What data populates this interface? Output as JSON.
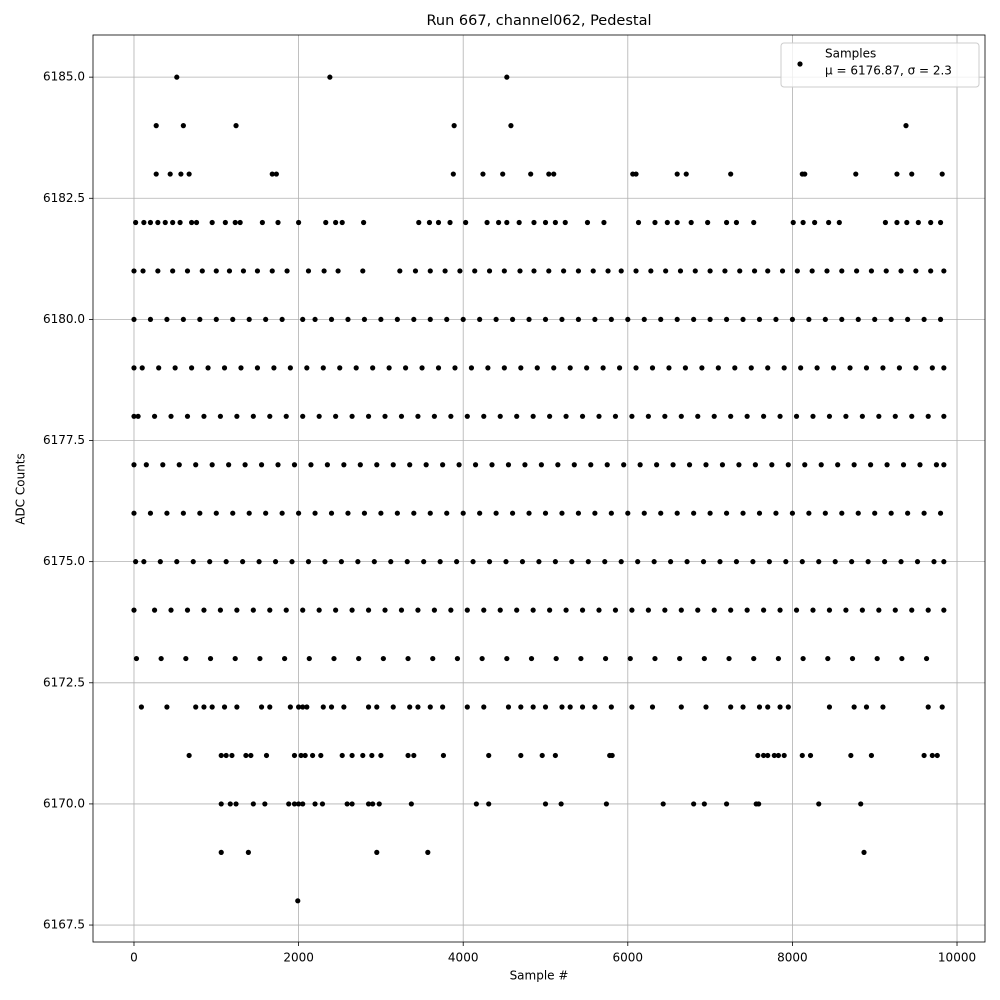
{
  "chart_data": {
    "type": "scatter",
    "title": "Run 667, channel062, Pedestal",
    "x_label": "Sample #",
    "y_label": "ADC Counts",
    "legend_note": "μ = 6176.87, σ = 2.3",
    "legend_position": "upper right",
    "grid": true,
    "xlim": [
      -498,
      10340
    ],
    "ylim": [
      6167.15,
      6185.87
    ],
    "xticks": [
      0,
      2000,
      4000,
      6000,
      8000,
      10000
    ],
    "yticks": [
      {
        "value": 6167.5,
        "label": "6167.5"
      },
      {
        "value": 6170,
        "label": "6170.0"
      },
      {
        "value": 6172.5,
        "label": "6172.5"
      },
      {
        "value": 6175,
        "label": "6175.0"
      },
      {
        "value": 6177.5,
        "label": "6177.5"
      },
      {
        "value": 6180,
        "label": "6180.0"
      },
      {
        "value": 6182.5,
        "label": "6182.5"
      },
      {
        "value": 6185,
        "label": "6185.0"
      }
    ],
    "x": [
      520,
      2380,
      4530,
      270,
      600,
      1240,
      3890,
      4580,
      9380,
      270,
      440,
      570,
      670,
      1680,
      1730,
      3880,
      4240,
      4480,
      4820,
      5040,
      5100,
      6060,
      6100,
      6600,
      6710,
      7250,
      8120,
      8150,
      8770,
      9270,
      9450,
      9820,
      20,
      120,
      200,
      290,
      380,
      470,
      560,
      700,
      760,
      950,
      1110,
      1230,
      1290,
      1560,
      1750,
      2000,
      2330,
      2450,
      2530,
      2790,
      3460,
      3590,
      3700,
      3840,
      4030,
      4290,
      4430,
      4530,
      4680,
      4860,
      5000,
      5120,
      5240,
      5510,
      5710,
      6130,
      6330,
      6480,
      6600,
      6770,
      6970,
      7200,
      7320,
      7530,
      8010,
      8130,
      8270,
      8440,
      8570,
      9130,
      9270,
      9390,
      9530,
      9680,
      9800,
      0,
      110,
      290,
      470,
      650,
      830,
      1000,
      1160,
      1330,
      1500,
      1680,
      1860,
      2120,
      2310,
      2480,
      2780,
      3230,
      3420,
      3600,
      3780,
      3960,
      4140,
      4320,
      4500,
      4690,
      4860,
      5040,
      5220,
      5400,
      5580,
      5760,
      5920,
      6100,
      6280,
      6460,
      6640,
      6820,
      7000,
      7180,
      7360,
      7540,
      7700,
      7880,
      8060,
      8240,
      8420,
      8600,
      8780,
      8960,
      9140,
      9320,
      9500,
      9680,
      9840,
      0,
      200,
      400,
      600,
      800,
      1000,
      1200,
      1400,
      1600,
      1800,
      2050,
      2200,
      2400,
      2600,
      2800,
      3000,
      3200,
      3400,
      3600,
      3800,
      4000,
      4200,
      4400,
      4600,
      4800,
      5000,
      5200,
      5400,
      5600,
      5800,
      6000,
      6200,
      6400,
      6600,
      6800,
      7000,
      7200,
      7400,
      7600,
      7800,
      8000,
      8200,
      8400,
      8600,
      8800,
      9000,
      9200,
      9400,
      9600,
      9800,
      0,
      100,
      300,
      500,
      700,
      900,
      1100,
      1300,
      1500,
      1700,
      1900,
      2100,
      2300,
      2500,
      2700,
      2900,
      3100,
      3300,
      3500,
      3700,
      3900,
      4100,
      4300,
      4500,
      4700,
      4900,
      5100,
      5300,
      5500,
      5700,
      5900,
      6100,
      6300,
      6500,
      6700,
      6900,
      7100,
      7300,
      7500,
      7700,
      7900,
      8100,
      8300,
      8500,
      8700,
      8900,
      9100,
      9300,
      9500,
      9700,
      9840,
      0,
      50,
      250,
      450,
      650,
      850,
      1050,
      1250,
      1450,
      1650,
      1850,
      2050,
      2250,
      2450,
      2650,
      2850,
      3050,
      3250,
      3450,
      3650,
      3850,
      4050,
      4250,
      4450,
      4650,
      4850,
      5050,
      5250,
      5450,
      5650,
      5850,
      6050,
      6250,
      6450,
      6650,
      6850,
      7050,
      7250,
      7450,
      7650,
      7850,
      8050,
      8250,
      8450,
      8650,
      8850,
      9050,
      9250,
      9450,
      9650,
      9840,
      0,
      150,
      350,
      550,
      750,
      950,
      1150,
      1350,
      1550,
      1750,
      1950,
      2150,
      2350,
      2550,
      2750,
      2950,
      3150,
      3350,
      3550,
      3750,
      3950,
      4150,
      4350,
      4550,
      4750,
      4950,
      5150,
      5350,
      5550,
      5750,
      5950,
      6150,
      6350,
      6550,
      6750,
      6950,
      7150,
      7350,
      7550,
      7750,
      7950,
      8150,
      8350,
      8550,
      8750,
      8950,
      9150,
      9350,
      9550,
      9750,
      9840,
      0,
      200,
      400,
      600,
      800,
      1000,
      1200,
      1400,
      1600,
      1800,
      2000,
      2200,
      2400,
      2600,
      2800,
      3000,
      3200,
      3400,
      3600,
      3800,
      4000,
      4200,
      4400,
      4600,
      4800,
      5000,
      5200,
      5400,
      5600,
      5800,
      6000,
      6200,
      6400,
      6600,
      6800,
      7000,
      7200,
      7400,
      7600,
      7800,
      8000,
      8200,
      8400,
      8600,
      8800,
      9000,
      9200,
      9400,
      9600,
      9800,
      20,
      120,
      320,
      520,
      720,
      920,
      1120,
      1320,
      1520,
      1720,
      1920,
      2120,
      2320,
      2520,
      2720,
      2920,
      3120,
      3320,
      3520,
      3720,
      3920,
      4120,
      4320,
      4520,
      4720,
      4920,
      5120,
      5320,
      5520,
      5720,
      5920,
      6120,
      6320,
      6520,
      6720,
      6920,
      7120,
      7320,
      7520,
      7720,
      7920,
      8120,
      8320,
      8520,
      8720,
      8920,
      9120,
      9320,
      9520,
      9720,
      9840,
      0,
      250,
      450,
      650,
      850,
      1050,
      1250,
      1450,
      1650,
      1850,
      2050,
      2250,
      2450,
      2650,
      2850,
      3050,
      3250,
      3450,
      3650,
      3850,
      4050,
      4250,
      4450,
      4650,
      4850,
      5050,
      5250,
      5450,
      5650,
      5850,
      6050,
      6250,
      6450,
      6650,
      6850,
      7050,
      7250,
      7450,
      7650,
      7850,
      8050,
      8250,
      8450,
      8650,
      8850,
      9050,
      9250,
      9450,
      9650,
      9840,
      30,
      330,
      630,
      930,
      1230,
      1530,
      1830,
      2130,
      2430,
      2730,
      3030,
      3330,
      3630,
      3930,
      4230,
      4530,
      4830,
      5130,
      5430,
      5730,
      6030,
      6330,
      6630,
      6930,
      7230,
      7530,
      7830,
      8130,
      8430,
      8730,
      9030,
      9330,
      9630,
      90,
      400,
      750,
      850,
      950,
      1100,
      1250,
      1550,
      1650,
      1900,
      2000,
      2050,
      2100,
      2300,
      2400,
      2550,
      2850,
      2950,
      3150,
      3350,
      3450,
      3600,
      3750,
      4050,
      4250,
      4550,
      4700,
      4850,
      5000,
      5200,
      5300,
      5450,
      5600,
      5800,
      6050,
      6300,
      6650,
      6950,
      7250,
      7400,
      7600,
      7700,
      7850,
      7950,
      8450,
      8750,
      8900,
      9100,
      9650,
      9820,
      670,
      1060,
      1120,
      1190,
      1360,
      1420,
      1610,
      1950,
      2030,
      2080,
      2170,
      2270,
      2530,
      2650,
      2780,
      2890,
      3000,
      3330,
      3400,
      3760,
      4310,
      4700,
      4960,
      5120,
      5780,
      5810,
      7580,
      7650,
      7700,
      7780,
      7830,
      7900,
      8120,
      8220,
      8710,
      8960,
      9600,
      9700,
      9760,
      1060,
      1170,
      1240,
      1450,
      1590,
      1880,
      1950,
      2000,
      2050,
      2200,
      2290,
      2590,
      2650,
      2850,
      2900,
      2980,
      3370,
      4160,
      4310,
      5000,
      5190,
      5740,
      6430,
      6800,
      6930,
      7200,
      7560,
      7590,
      8320,
      8830,
      1060,
      1390,
      2950,
      3570,
      8870,
      1990
    ],
    "series": [
      {
        "name": "Samples",
        "color": "#000000",
        "values": [
          6185,
          6185,
          6185,
          6184,
          6184,
          6184,
          6184,
          6184,
          6184,
          6183,
          6183,
          6183,
          6183,
          6183,
          6183,
          6183,
          6183,
          6183,
          6183,
          6183,
          6183,
          6183,
          6183,
          6183,
          6183,
          6183,
          6183,
          6183,
          6183,
          6183,
          6183,
          6183,
          6182,
          6182,
          6182,
          6182,
          6182,
          6182,
          6182,
          6182,
          6182,
          6182,
          6182,
          6182,
          6182,
          6182,
          6182,
          6182,
          6182,
          6182,
          6182,
          6182,
          6182,
          6182,
          6182,
          6182,
          6182,
          6182,
          6182,
          6182,
          6182,
          6182,
          6182,
          6182,
          6182,
          6182,
          6182,
          6182,
          6182,
          6182,
          6182,
          6182,
          6182,
          6182,
          6182,
          6182,
          6182,
          6182,
          6182,
          6182,
          6182,
          6182,
          6182,
          6182,
          6182,
          6182,
          6182,
          6181,
          6181,
          6181,
          6181,
          6181,
          6181,
          6181,
          6181,
          6181,
          6181,
          6181,
          6181,
          6181,
          6181,
          6181,
          6181,
          6181,
          6181,
          6181,
          6181,
          6181,
          6181,
          6181,
          6181,
          6181,
          6181,
          6181,
          6181,
          6181,
          6181,
          6181,
          6181,
          6181,
          6181,
          6181,
          6181,
          6181,
          6181,
          6181,
          6181,
          6181,
          6181,
          6181,
          6181,
          6181,
          6181,
          6181,
          6181,
          6181,
          6181,
          6181,
          6181,
          6181,
          6181,
          6180,
          6180,
          6180,
          6180,
          6180,
          6180,
          6180,
          6180,
          6180,
          6180,
          6180,
          6180,
          6180,
          6180,
          6180,
          6180,
          6180,
          6180,
          6180,
          6180,
          6180,
          6180,
          6180,
          6180,
          6180,
          6180,
          6180,
          6180,
          6180,
          6180,
          6180,
          6180,
          6180,
          6180,
          6180,
          6180,
          6180,
          6180,
          6180,
          6180,
          6180,
          6180,
          6180,
          6180,
          6180,
          6180,
          6180,
          6180,
          6180,
          6180,
          6179,
          6179,
          6179,
          6179,
          6179,
          6179,
          6179,
          6179,
          6179,
          6179,
          6179,
          6179,
          6179,
          6179,
          6179,
          6179,
          6179,
          6179,
          6179,
          6179,
          6179,
          6179,
          6179,
          6179,
          6179,
          6179,
          6179,
          6179,
          6179,
          6179,
          6179,
          6179,
          6179,
          6179,
          6179,
          6179,
          6179,
          6179,
          6179,
          6179,
          6179,
          6179,
          6179,
          6179,
          6179,
          6179,
          6179,
          6179,
          6179,
          6179,
          6179,
          6178,
          6178,
          6178,
          6178,
          6178,
          6178,
          6178,
          6178,
          6178,
          6178,
          6178,
          6178,
          6178,
          6178,
          6178,
          6178,
          6178,
          6178,
          6178,
          6178,
          6178,
          6178,
          6178,
          6178,
          6178,
          6178,
          6178,
          6178,
          6178,
          6178,
          6178,
          6178,
          6178,
          6178,
          6178,
          6178,
          6178,
          6178,
          6178,
          6178,
          6178,
          6178,
          6178,
          6178,
          6178,
          6178,
          6178,
          6178,
          6178,
          6178,
          6178,
          6177,
          6177,
          6177,
          6177,
          6177,
          6177,
          6177,
          6177,
          6177,
          6177,
          6177,
          6177,
          6177,
          6177,
          6177,
          6177,
          6177,
          6177,
          6177,
          6177,
          6177,
          6177,
          6177,
          6177,
          6177,
          6177,
          6177,
          6177,
          6177,
          6177,
          6177,
          6177,
          6177,
          6177,
          6177,
          6177,
          6177,
          6177,
          6177,
          6177,
          6177,
          6177,
          6177,
          6177,
          6177,
          6177,
          6177,
          6177,
          6177,
          6177,
          6177,
          6176,
          6176,
          6176,
          6176,
          6176,
          6176,
          6176,
          6176,
          6176,
          6176,
          6176,
          6176,
          6176,
          6176,
          6176,
          6176,
          6176,
          6176,
          6176,
          6176,
          6176,
          6176,
          6176,
          6176,
          6176,
          6176,
          6176,
          6176,
          6176,
          6176,
          6176,
          6176,
          6176,
          6176,
          6176,
          6176,
          6176,
          6176,
          6176,
          6176,
          6176,
          6176,
          6176,
          6176,
          6176,
          6176,
          6176,
          6176,
          6176,
          6176,
          6175,
          6175,
          6175,
          6175,
          6175,
          6175,
          6175,
          6175,
          6175,
          6175,
          6175,
          6175,
          6175,
          6175,
          6175,
          6175,
          6175,
          6175,
          6175,
          6175,
          6175,
          6175,
          6175,
          6175,
          6175,
          6175,
          6175,
          6175,
          6175,
          6175,
          6175,
          6175,
          6175,
          6175,
          6175,
          6175,
          6175,
          6175,
          6175,
          6175,
          6175,
          6175,
          6175,
          6175,
          6175,
          6175,
          6175,
          6175,
          6175,
          6175,
          6175,
          6174,
          6174,
          6174,
          6174,
          6174,
          6174,
          6174,
          6174,
          6174,
          6174,
          6174,
          6174,
          6174,
          6174,
          6174,
          6174,
          6174,
          6174,
          6174,
          6174,
          6174,
          6174,
          6174,
          6174,
          6174,
          6174,
          6174,
          6174,
          6174,
          6174,
          6174,
          6174,
          6174,
          6174,
          6174,
          6174,
          6174,
          6174,
          6174,
          6174,
          6174,
          6174,
          6174,
          6174,
          6174,
          6174,
          6174,
          6174,
          6174,
          6174,
          6173,
          6173,
          6173,
          6173,
          6173,
          6173,
          6173,
          6173,
          6173,
          6173,
          6173,
          6173,
          6173,
          6173,
          6173,
          6173,
          6173,
          6173,
          6173,
          6173,
          6173,
          6173,
          6173,
          6173,
          6173,
          6173,
          6173,
          6173,
          6173,
          6173,
          6173,
          6173,
          6173,
          6172,
          6172,
          6172,
          6172,
          6172,
          6172,
          6172,
          6172,
          6172,
          6172,
          6172,
          6172,
          6172,
          6172,
          6172,
          6172,
          6172,
          6172,
          6172,
          6172,
          6172,
          6172,
          6172,
          6172,
          6172,
          6172,
          6172,
          6172,
          6172,
          6172,
          6172,
          6172,
          6172,
          6172,
          6172,
          6172,
          6172,
          6172,
          6172,
          6172,
          6172,
          6172,
          6172,
          6172,
          6172,
          6172,
          6172,
          6172,
          6172,
          6172,
          6171,
          6171,
          6171,
          6171,
          6171,
          6171,
          6171,
          6171,
          6171,
          6171,
          6171,
          6171,
          6171,
          6171,
          6171,
          6171,
          6171,
          6171,
          6171,
          6171,
          6171,
          6171,
          6171,
          6171,
          6171,
          6171,
          6171,
          6171,
          6171,
          6171,
          6171,
          6171,
          6171,
          6171,
          6171,
          6171,
          6171,
          6171,
          6171,
          6170,
          6170,
          6170,
          6170,
          6170,
          6170,
          6170,
          6170,
          6170,
          6170,
          6170,
          6170,
          6170,
          6170,
          6170,
          6170,
          6170,
          6170,
          6170,
          6170,
          6170,
          6170,
          6170,
          6170,
          6170,
          6170,
          6170,
          6170,
          6170,
          6170,
          6169,
          6169,
          6169,
          6169,
          6169,
          6168
        ]
      }
    ]
  }
}
